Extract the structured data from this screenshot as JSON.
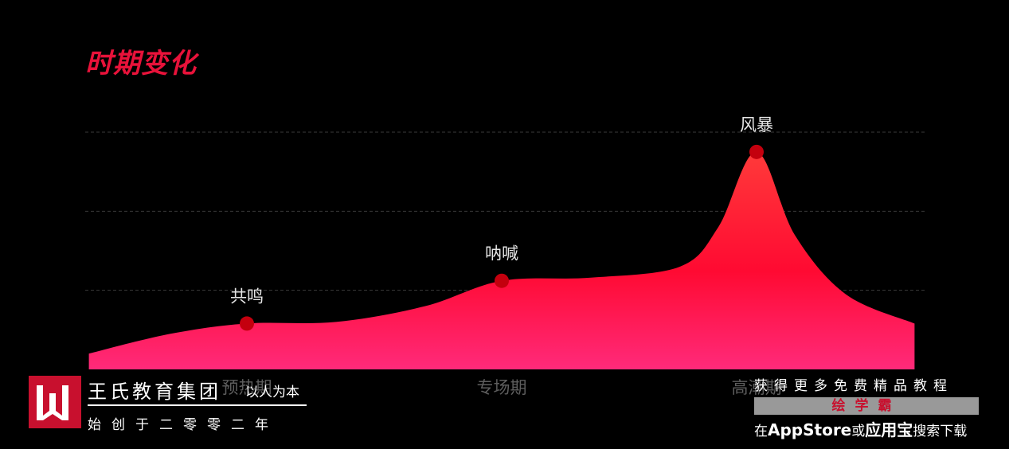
{
  "title": "时期变化",
  "chart_data": {
    "type": "area",
    "categories": [
      "预热期",
      "专场期",
      "高潮期"
    ],
    "points": [
      {
        "label": "共鸣",
        "x": 0,
        "y": 0.58
      },
      {
        "label": "呐喊",
        "x": 1,
        "y": 1.12
      },
      {
        "label": "风暴",
        "x": 2,
        "y": 2.75
      }
    ],
    "curve": [
      [
        -0.62,
        0.2
      ],
      [
        -0.3,
        0.45
      ],
      [
        0,
        0.58
      ],
      [
        0.35,
        0.6
      ],
      [
        0.7,
        0.8
      ],
      [
        1,
        1.12
      ],
      [
        1.35,
        1.16
      ],
      [
        1.7,
        1.3
      ],
      [
        1.85,
        1.8
      ],
      [
        2,
        2.75
      ],
      [
        2.15,
        1.7
      ],
      [
        2.35,
        0.95
      ],
      [
        2.62,
        0.58
      ]
    ],
    "ylim": [
      0,
      3
    ],
    "grid": true,
    "colors": {
      "fill_top": "#ff3a3a",
      "fill_mid": "#ff0a32",
      "fill_bottom": "#ff2a7a",
      "marker": "#c4000e",
      "grid": "#3a3a3a"
    }
  },
  "brand": {
    "name": "王氏教育集团",
    "slogan": "以人为本",
    "sub": "始创于二零零二年"
  },
  "promo": {
    "line1": "获得更多免费精品教程",
    "band": "绘学霸",
    "line3_pre": "在",
    "line3_store": "AppStore",
    "line3_mid": "或",
    "line3_app": "应用宝",
    "line3_post": "搜索下载"
  }
}
